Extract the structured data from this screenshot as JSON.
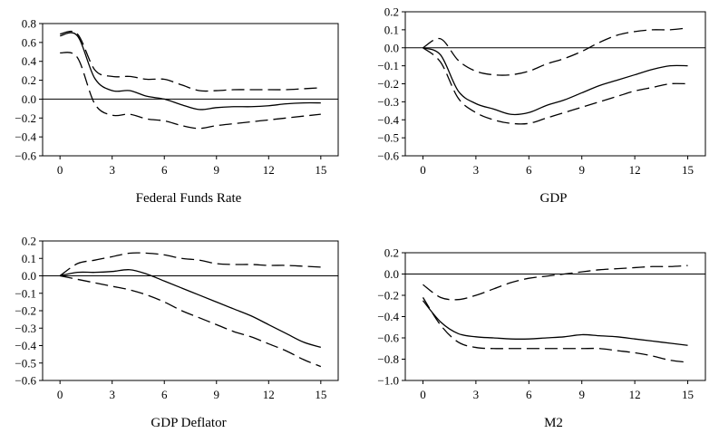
{
  "chart_data": [
    {
      "type": "line",
      "title": "Federal Funds Rate",
      "xlabel": "",
      "ylabel": "",
      "xlim": [
        -1,
        16
      ],
      "ylim": [
        -0.6,
        0.8
      ],
      "yticks": [
        0.8,
        0.6,
        0.4,
        0.2,
        0.0,
        -0.2,
        -0.4,
        -0.6
      ],
      "ytick_labels": [
        "0.8",
        "0.6",
        "0.4",
        "0.2",
        "0.0",
        "−0.2",
        "−0.4",
        "−0.6"
      ],
      "xticks": [
        0,
        3,
        6,
        9,
        12,
        15
      ],
      "xtick_labels": [
        "0",
        "3",
        "6",
        "9",
        "12",
        "15"
      ],
      "zero_line": 0.0,
      "grid": false,
      "series": [
        {
          "style": "solid",
          "x": [
            0,
            1,
            2,
            3,
            4,
            5,
            6,
            7,
            8,
            9,
            10,
            11,
            12,
            13,
            14,
            15
          ],
          "values": [
            0.67,
            0.67,
            0.22,
            0.09,
            0.09,
            0.03,
            0.0,
            -0.06,
            -0.11,
            -0.09,
            -0.08,
            -0.08,
            -0.07,
            -0.05,
            -0.04,
            -0.04
          ]
        },
        {
          "style": "dashed",
          "x": [
            0,
            1,
            2,
            3,
            4,
            5,
            6,
            7,
            8,
            9,
            10,
            11,
            12,
            13,
            14,
            15
          ],
          "values": [
            0.69,
            0.69,
            0.31,
            0.24,
            0.24,
            0.21,
            0.21,
            0.15,
            0.09,
            0.09,
            0.1,
            0.1,
            0.1,
            0.1,
            0.11,
            0.12
          ]
        },
        {
          "style": "dashed",
          "x": [
            0,
            1,
            2,
            3,
            4,
            5,
            6,
            7,
            8,
            9,
            10,
            11,
            12,
            13,
            14,
            15
          ],
          "values": [
            0.49,
            0.44,
            -0.05,
            -0.17,
            -0.16,
            -0.21,
            -0.23,
            -0.28,
            -0.31,
            -0.28,
            -0.26,
            -0.24,
            -0.22,
            -0.2,
            -0.18,
            -0.16
          ]
        }
      ]
    },
    {
      "type": "line",
      "title": "GDP",
      "xlabel": "",
      "ylabel": "",
      "xlim": [
        -1,
        16
      ],
      "ylim": [
        -0.6,
        0.2
      ],
      "yticks": [
        0.2,
        0.1,
        0.0,
        -0.1,
        -0.2,
        -0.3,
        -0.4,
        -0.5,
        -0.6
      ],
      "ytick_labels": [
        "0.2",
        "0.1",
        "0.0",
        "−0.1",
        "−0.2",
        "−0.3",
        "−0.4",
        "−0.5",
        "−0.6"
      ],
      "xticks": [
        0,
        3,
        6,
        9,
        12,
        15
      ],
      "xtick_labels": [
        "0",
        "3",
        "6",
        "9",
        "12",
        "15"
      ],
      "zero_line": 0.0,
      "grid": false,
      "series": [
        {
          "style": "solid",
          "x": [
            0,
            1,
            2,
            3,
            4,
            5,
            6,
            7,
            8,
            9,
            10,
            11,
            12,
            13,
            14,
            15
          ],
          "values": [
            0.0,
            -0.04,
            -0.24,
            -0.31,
            -0.34,
            -0.37,
            -0.36,
            -0.32,
            -0.29,
            -0.25,
            -0.21,
            -0.18,
            -0.15,
            -0.12,
            -0.1,
            -0.1
          ]
        },
        {
          "style": "dashed",
          "x": [
            0,
            1,
            2,
            3,
            4,
            5,
            6,
            7,
            8,
            9,
            10,
            11,
            12,
            13,
            14,
            15
          ],
          "values": [
            0.0,
            0.05,
            -0.07,
            -0.13,
            -0.15,
            -0.15,
            -0.13,
            -0.09,
            -0.06,
            -0.02,
            0.03,
            0.07,
            0.09,
            0.1,
            0.1,
            0.11
          ]
        },
        {
          "style": "dashed",
          "x": [
            0,
            1,
            2,
            3,
            4,
            5,
            6,
            7,
            8,
            9,
            10,
            11,
            12,
            13,
            14,
            15
          ],
          "values": [
            0.0,
            -0.08,
            -0.28,
            -0.36,
            -0.4,
            -0.42,
            -0.42,
            -0.39,
            -0.36,
            -0.33,
            -0.3,
            -0.27,
            -0.24,
            -0.22,
            -0.2,
            -0.2
          ]
        }
      ]
    },
    {
      "type": "line",
      "title": "GDP Deflator",
      "xlabel": "",
      "ylabel": "",
      "xlim": [
        -1,
        16
      ],
      "ylim": [
        -0.6,
        0.2
      ],
      "yticks": [
        0.2,
        0.1,
        0.0,
        -0.1,
        -0.2,
        -0.3,
        -0.4,
        -0.5,
        -0.6
      ],
      "ytick_labels": [
        "0.2",
        "0.1",
        "0.0",
        "−0.1",
        "−0.2",
        "−0.3",
        "−0.4",
        "−0.5",
        "−0.6"
      ],
      "xticks": [
        0,
        3,
        6,
        9,
        12,
        15
      ],
      "xtick_labels": [
        "0",
        "3",
        "6",
        "9",
        "12",
        "15"
      ],
      "zero_line": 0.0,
      "grid": false,
      "series": [
        {
          "style": "solid",
          "x": [
            0,
            1,
            2,
            3,
            4,
            5,
            6,
            7,
            8,
            9,
            10,
            11,
            12,
            13,
            14,
            15
          ],
          "values": [
            0.0,
            0.02,
            0.02,
            0.025,
            0.035,
            0.01,
            -0.03,
            -0.07,
            -0.11,
            -0.15,
            -0.19,
            -0.23,
            -0.28,
            -0.33,
            -0.38,
            -0.41
          ]
        },
        {
          "style": "dashed",
          "x": [
            0,
            1,
            2,
            3,
            4,
            5,
            6,
            7,
            8,
            9,
            10,
            11,
            12,
            13,
            14,
            15
          ],
          "values": [
            0.0,
            0.07,
            0.09,
            0.11,
            0.13,
            0.13,
            0.12,
            0.1,
            0.09,
            0.07,
            0.065,
            0.065,
            0.06,
            0.06,
            0.055,
            0.05
          ]
        },
        {
          "style": "dashed",
          "x": [
            0,
            1,
            2,
            3,
            4,
            5,
            6,
            7,
            8,
            9,
            10,
            11,
            12,
            13,
            14,
            15
          ],
          "values": [
            0.0,
            -0.02,
            -0.04,
            -0.06,
            -0.08,
            -0.11,
            -0.15,
            -0.2,
            -0.24,
            -0.28,
            -0.32,
            -0.35,
            -0.39,
            -0.43,
            -0.48,
            -0.52
          ]
        }
      ]
    },
    {
      "type": "line",
      "title": "M2",
      "xlabel": "",
      "ylabel": "",
      "xlim": [
        -1,
        16
      ],
      "ylim": [
        -1.0,
        0.2
      ],
      "yticks": [
        0.2,
        0.0,
        -0.2,
        -0.4,
        -0.6,
        -0.8,
        -1.0
      ],
      "ytick_labels": [
        "0.2",
        "0.0",
        "−0.2",
        "−0.4",
        "−0.6",
        "−0.8",
        "−1.0"
      ],
      "xticks": [
        0,
        3,
        6,
        9,
        12,
        15
      ],
      "xtick_labels": [
        "0",
        "3",
        "6",
        "9",
        "12",
        "15"
      ],
      "zero_line": 0.0,
      "grid": false,
      "series": [
        {
          "style": "solid",
          "x": [
            0,
            1,
            2,
            3,
            4,
            5,
            6,
            7,
            8,
            9,
            10,
            11,
            12,
            13,
            14,
            15
          ],
          "values": [
            -0.25,
            -0.45,
            -0.56,
            -0.59,
            -0.6,
            -0.61,
            -0.61,
            -0.6,
            -0.59,
            -0.57,
            -0.58,
            -0.59,
            -0.61,
            -0.63,
            -0.65,
            -0.67
          ]
        },
        {
          "style": "dashed",
          "x": [
            0,
            1,
            2,
            3,
            4,
            5,
            6,
            7,
            8,
            9,
            10,
            11,
            12,
            13,
            14,
            15
          ],
          "values": [
            -0.1,
            -0.22,
            -0.24,
            -0.2,
            -0.14,
            -0.08,
            -0.04,
            -0.02,
            0.0,
            0.02,
            0.04,
            0.05,
            0.06,
            0.07,
            0.07,
            0.08
          ]
        },
        {
          "style": "dashed",
          "x": [
            0,
            1,
            2,
            3,
            4,
            5,
            6,
            7,
            8,
            9,
            10,
            11,
            12,
            13,
            14,
            15
          ],
          "values": [
            -0.22,
            -0.48,
            -0.64,
            -0.69,
            -0.7,
            -0.7,
            -0.7,
            -0.7,
            -0.7,
            -0.7,
            -0.7,
            -0.72,
            -0.74,
            -0.77,
            -0.81,
            -0.83
          ]
        }
      ]
    }
  ]
}
